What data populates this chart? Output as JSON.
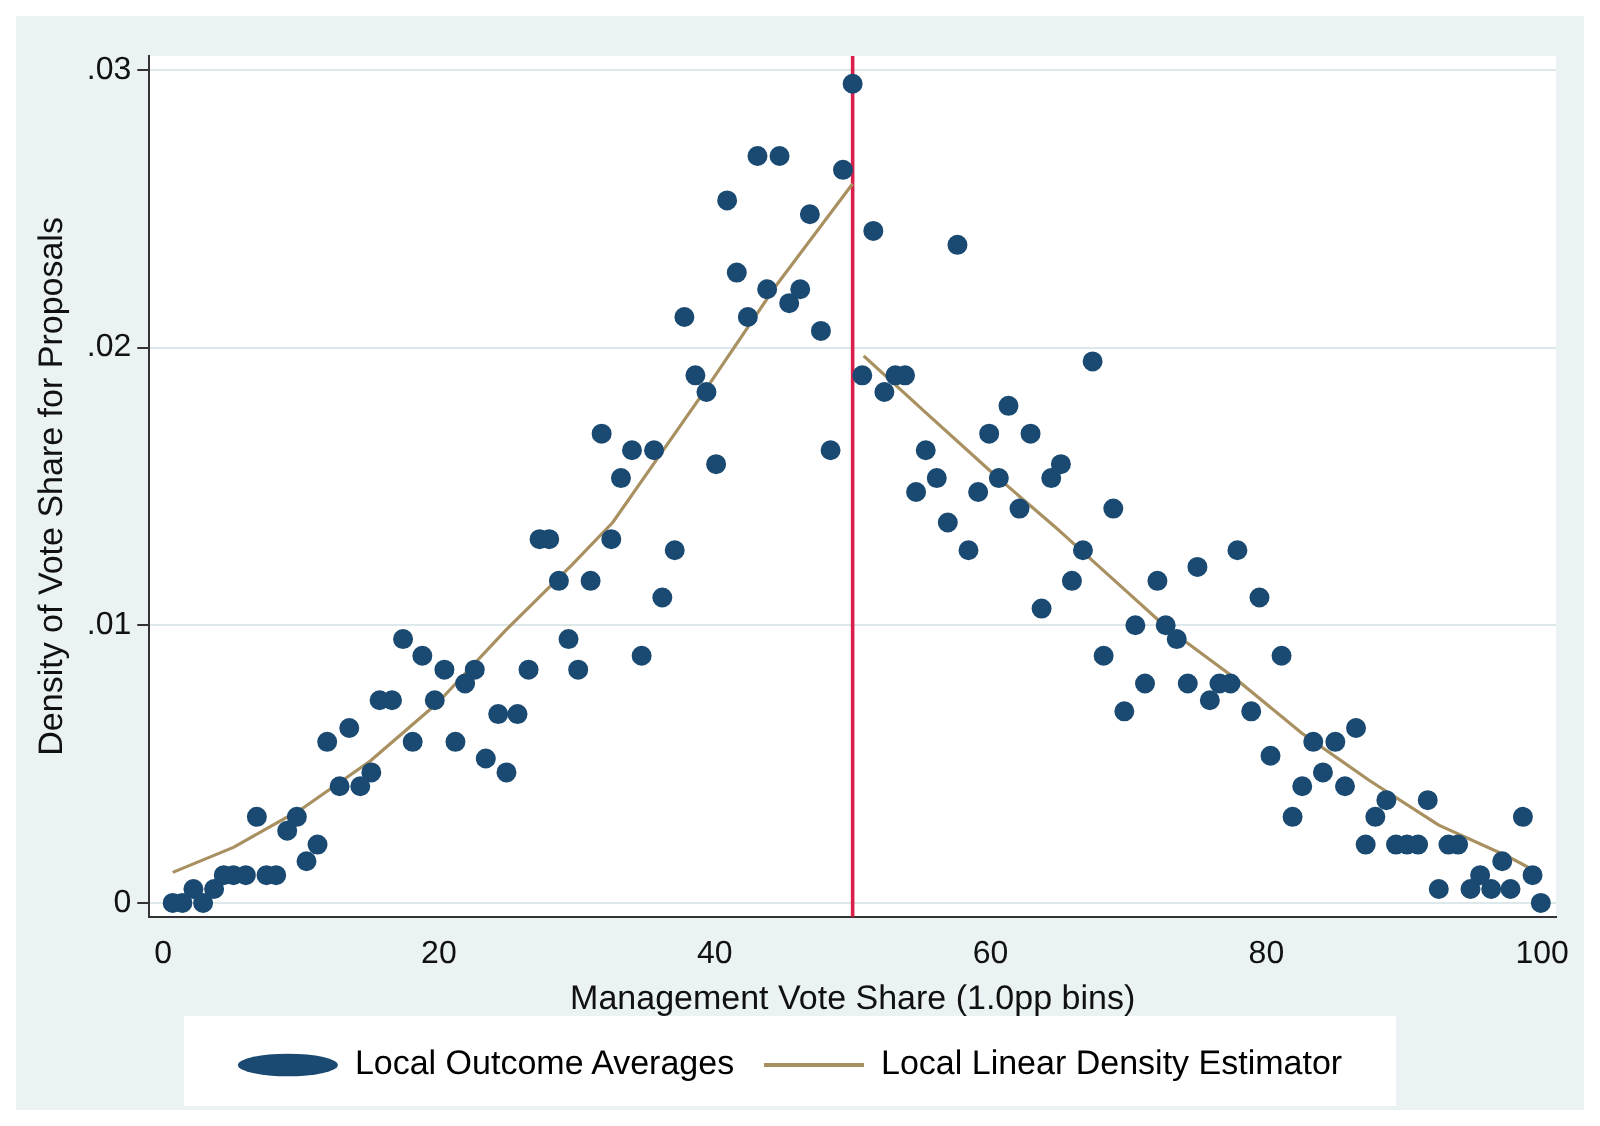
{
  "chart_data": {
    "type": "scatter",
    "xlabel": "Management Vote Share (1.0pp bins)",
    "ylabel": "Density of Vote Share for Proposals",
    "xlim": [
      -1,
      101
    ],
    "xticks": [
      0,
      20,
      40,
      60,
      80,
      100
    ],
    "ylim": [
      -0.0005,
      0.0305
    ],
    "yticks": [
      {
        "value": 0,
        "label": "0"
      },
      {
        "value": 0.01,
        "label": ".01"
      },
      {
        "value": 0.02,
        "label": ".02"
      },
      {
        "value": 0.03,
        "label": ".03"
      }
    ],
    "grid": "y",
    "legend": "bottom",
    "ref_lines": [
      {
        "axis": "x",
        "value": 50,
        "color": "#d8204a"
      }
    ],
    "series": [
      {
        "name": "Local Outcome Averages",
        "type": "scatter",
        "marker": "circle",
        "color": "#1a4a72",
        "x": [
          0.7,
          1.4,
          2.2,
          2.9,
          3.7,
          4.4,
          5.1,
          6.0,
          6.8,
          7.5,
          8.2,
          9.0,
          9.7,
          10.4,
          11.2,
          11.9,
          12.8,
          13.5,
          14.3,
          15.1,
          15.7,
          16.6,
          17.4,
          18.1,
          18.8,
          19.7,
          20.4,
          21.2,
          21.9,
          22.6,
          23.4,
          24.3,
          24.9,
          25.7,
          26.5,
          27.3,
          28.0,
          28.7,
          29.4,
          30.1,
          31.0,
          31.8,
          32.5,
          33.2,
          34.0,
          34.7,
          35.6,
          36.2,
          37.1,
          37.8,
          38.6,
          39.4,
          40.1,
          40.9,
          41.6,
          42.4,
          43.1,
          43.8,
          44.7,
          45.4,
          46.2,
          46.9,
          47.7,
          48.4,
          49.3,
          50.0,
          50.7,
          51.5,
          52.3,
          53.1,
          53.8,
          54.6,
          55.3,
          56.1,
          56.9,
          57.6,
          58.4,
          59.1,
          59.9,
          60.6,
          61.3,
          62.1,
          62.9,
          63.7,
          64.4,
          65.1,
          65.9,
          66.7,
          67.4,
          68.2,
          68.9,
          69.7,
          70.5,
          71.2,
          72.1,
          72.7,
          73.5,
          74.3,
          75.0,
          75.9,
          76.6,
          77.4,
          77.9,
          78.9,
          79.5,
          80.3,
          81.1,
          81.9,
          82.6,
          83.4,
          84.1,
          85.0,
          85.7,
          86.5,
          87.2,
          87.9,
          88.7,
          89.4,
          90.2,
          91.0,
          91.7,
          92.5,
          93.2,
          93.9,
          94.8,
          95.5,
          96.3,
          97.1,
          97.7,
          98.6,
          99.3,
          99.9
        ],
        "values": [
          0,
          0,
          0.0005,
          0,
          0.0005,
          0.001,
          0.001,
          0.001,
          0.0031,
          0.001,
          0.001,
          0.0026,
          0.0031,
          0.0015,
          0.0021,
          0.0058,
          0.0042,
          0.0063,
          0.0042,
          0.0047,
          0.0073,
          0.0073,
          0.0095,
          0.0058,
          0.0089,
          0.0073,
          0.0084,
          0.0058,
          0.0079,
          0.0084,
          0.0052,
          0.0068,
          0.0047,
          0.0068,
          0.0084,
          0.0131,
          0.0131,
          0.0116,
          0.0095,
          0.0084,
          0.0116,
          0.0169,
          0.0131,
          0.0153,
          0.0163,
          0.0089,
          0.0163,
          0.011,
          0.0127,
          0.0211,
          0.019,
          0.0184,
          0.0158,
          0.0253,
          0.0227,
          0.0211,
          0.0269,
          0.0221,
          0.0269,
          0.0216,
          0.0221,
          0.0248,
          0.0206,
          0.0163,
          0.0264,
          0.0295,
          0.019,
          0.0242,
          0.0184,
          0.019,
          0.019,
          0.0148,
          0.0163,
          0.0153,
          0.0137,
          0.0237,
          0.0127,
          0.0148,
          0.0169,
          0.0153,
          0.0179,
          0.0142,
          0.0169,
          0.0106,
          0.0153,
          0.0158,
          0.0116,
          0.0127,
          0.0195,
          0.0089,
          0.0142,
          0.0069,
          0.01,
          0.0079,
          0.0116,
          0.01,
          0.0095,
          0.0079,
          0.0121,
          0.0073,
          0.0079,
          0.0079,
          0.0127,
          0.0069,
          0.011,
          0.0053,
          0.0089,
          0.0031,
          0.0042,
          0.0058,
          0.0047,
          0.0058,
          0.0042,
          0.0063,
          0.0021,
          0.0031,
          0.0037,
          0.0021,
          0.0021,
          0.0021,
          0.0037,
          0.0005,
          0.0021,
          0.0021,
          0.0005,
          0.001,
          0.0005,
          0.0015,
          0.0005,
          0.0031,
          0.001,
          0
        ]
      },
      {
        "name": "Local Linear Density Estimator",
        "type": "line",
        "marker": "none",
        "line_style": "solid",
        "color": "#a89060",
        "x": [
          0.7,
          5.1,
          10.1,
          15.0,
          19.9,
          24.8,
          29.7,
          32.6,
          39.5,
          44.4,
          50.0,
          50.4,
          50.8,
          55.2,
          60.1,
          65.0,
          69.9,
          72.8,
          77.7,
          82.6,
          87.5,
          92.5,
          97.4,
          99.3
        ],
        "values": [
          0.0011,
          0.002,
          0.0034,
          0.0051,
          0.0072,
          0.0098,
          0.0122,
          0.0137,
          0.0186,
          0.0222,
          0.0259,
          null,
          0.0197,
          0.0177,
          0.0155,
          0.0134,
          0.0112,
          0.0099,
          0.0081,
          0.0061,
          0.0044,
          0.0028,
          0.0017,
          0.0012
        ]
      }
    ]
  }
}
